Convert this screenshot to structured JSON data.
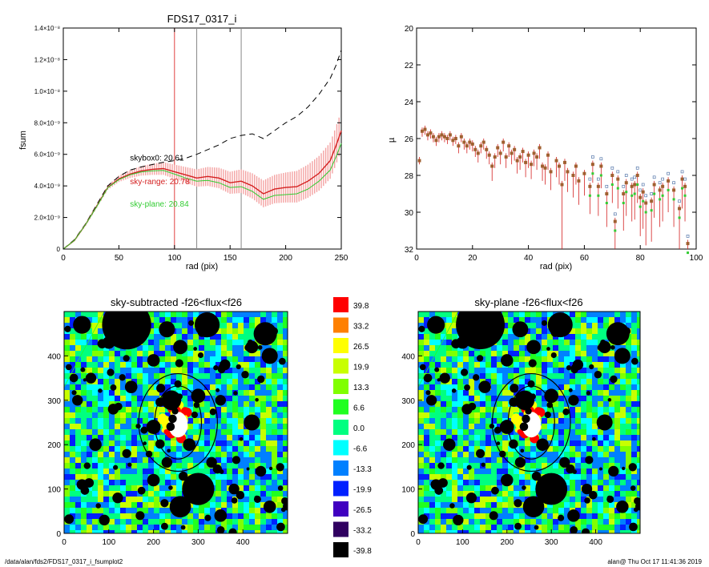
{
  "footer": {
    "path": "/data/alan/fds2/FDS17_0317_i_fsumplot2",
    "stamp": "alan@  Thu Oct 17 11:41:36 2019"
  },
  "colors": {
    "sky_range": "#d42020",
    "sky_range_band": "#f4a3a3",
    "sky_plane": "#33cc33",
    "skybox": "#000000",
    "vline_red": "#e04040",
    "vline_grey": "#888888"
  },
  "chart_data": [
    {
      "type": "line",
      "title": "FDS17_0317_i",
      "xlabel": "rad (pix)",
      "ylabel": "fsum",
      "xlim": [
        0,
        250
      ],
      "ylim": [
        0,
        1.4e-08
      ],
      "xticks": [
        0,
        50,
        100,
        150,
        200,
        250
      ],
      "yticks": [
        {
          "v": 0,
          "label": "0"
        },
        {
          "v": 2e-09,
          "label": "2.0×10⁻⁹"
        },
        {
          "v": 4e-09,
          "label": "4.0×10⁻⁹"
        },
        {
          "v": 6e-09,
          "label": "6.0×10⁻⁹"
        },
        {
          "v": 8e-09,
          "label": "8.0×10⁻⁹"
        },
        {
          "v": 1e-08,
          "label": "1.0×10⁻⁸"
        },
        {
          "v": 1.2e-08,
          "label": "1.2×10⁻⁸"
        },
        {
          "v": 1.4e-08,
          "label": "1.4×10⁻⁸"
        }
      ],
      "vlines": [
        {
          "x": 100,
          "color": "red"
        },
        {
          "x": 120,
          "color": "grey"
        },
        {
          "x": 160,
          "color": "grey"
        }
      ],
      "annotations": [
        {
          "text": "skybox0: 20.61",
          "x": 60,
          "y": 5.6e-09,
          "color": "black"
        },
        {
          "text": "sky-range: 20.78",
          "x": 60,
          "y": 4.1e-09,
          "color": "red"
        },
        {
          "text": "sky-plane: 20.84",
          "x": 60,
          "y": 2.7e-09,
          "color": "green"
        }
      ],
      "series": [
        {
          "style": "dashed",
          "color": "black",
          "x": [
            0,
            10,
            20,
            30,
            40,
            50,
            60,
            70,
            80,
            90,
            100,
            110,
            120,
            130,
            140,
            150,
            160,
            170,
            180,
            190,
            200,
            210,
            220,
            230,
            240,
            245,
            250
          ],
          "y": [
            0,
            6e-10,
            1.6e-09,
            2.8e-09,
            4e-09,
            4.6e-09,
            5e-09,
            5.2e-09,
            5.35e-09,
            5.5e-09,
            5.6e-09,
            5.75e-09,
            6e-09,
            6.3e-09,
            6.6e-09,
            7e-09,
            7.2e-09,
            7.3e-09,
            7e-09,
            7.5e-09,
            8e-09,
            8.4e-09,
            9e-09,
            9.8e-09,
            1.08e-08,
            1.16e-08,
            1.26e-08
          ]
        },
        {
          "style": "solid",
          "color": "red",
          "x": [
            0,
            10,
            20,
            30,
            40,
            50,
            60,
            70,
            80,
            90,
            100,
            110,
            120,
            130,
            140,
            150,
            160,
            170,
            180,
            190,
            200,
            210,
            220,
            230,
            240,
            245,
            250
          ],
          "y": [
            0,
            5.5e-10,
            1.55e-09,
            2.7e-09,
            3.9e-09,
            4.45e-09,
            4.75e-09,
            4.95e-09,
            5.05e-09,
            5.1e-09,
            4.9e-09,
            4.7e-09,
            4.5e-09,
            4.6e-09,
            4.5e-09,
            4.2e-09,
            4.3e-09,
            4e-09,
            3.5e-09,
            3.8e-09,
            3.9e-09,
            3.95e-09,
            4.3e-09,
            4.8e-09,
            5.6e-09,
            6.5e-09,
            7.5e-09
          ],
          "err": [
            0,
            5e-11,
            8e-11,
            1e-10,
            1.5e-10,
            2e-10,
            2.5e-10,
            3e-10,
            3.5e-10,
            4e-10,
            4.5e-10,
            5e-10,
            5.5e-10,
            6e-10,
            6.5e-10,
            7e-10,
            7.5e-10,
            8e-10,
            8.5e-10,
            9e-10,
            9.5e-10,
            1e-09,
            1.05e-09,
            1.1e-09,
            1.15e-09,
            1.2e-09,
            1.25e-09
          ]
        },
        {
          "style": "solid",
          "color": "green",
          "x": [
            0,
            10,
            20,
            30,
            40,
            50,
            60,
            70,
            80,
            90,
            100,
            110,
            120,
            130,
            140,
            150,
            160,
            170,
            180,
            190,
            200,
            210,
            220,
            230,
            240,
            245,
            250
          ],
          "y": [
            0,
            5.5e-10,
            1.55e-09,
            2.68e-09,
            3.88e-09,
            4.4e-09,
            4.7e-09,
            4.88e-09,
            4.95e-09,
            4.98e-09,
            4.75e-09,
            4.5e-09,
            4.3e-09,
            4.35e-09,
            4.2e-09,
            3.9e-09,
            3.95e-09,
            3.65e-09,
            3.15e-09,
            3.4e-09,
            3.45e-09,
            3.5e-09,
            3.8e-09,
            4.3e-09,
            5e-09,
            5.8e-09,
            6.7e-09
          ]
        }
      ]
    },
    {
      "type": "scatter",
      "title": "",
      "xlabel": "rad (pix)",
      "ylabel": "µ",
      "xlim": [
        0,
        100
      ],
      "ylim": [
        32,
        20
      ],
      "xticks": [
        0,
        20,
        40,
        60,
        80,
        100
      ],
      "yticks": [
        20,
        22,
        24,
        26,
        28,
        30,
        32
      ],
      "series": [
        {
          "color": "red",
          "x": [
            1,
            2,
            3,
            4,
            5,
            6,
            7,
            8,
            9,
            10,
            11,
            12,
            13,
            14,
            15,
            16,
            17,
            18,
            19,
            20,
            21,
            22,
            23,
            24,
            25,
            26,
            27,
            28,
            29,
            30,
            31,
            32,
            33,
            34,
            35,
            36,
            37,
            38,
            39,
            40,
            41,
            42,
            43,
            44,
            45,
            46,
            47,
            48,
            50,
            51,
            52,
            53,
            54,
            56,
            57,
            58,
            60,
            62,
            63,
            65,
            66,
            68,
            70,
            71,
            72,
            74,
            75,
            77,
            78,
            79,
            80,
            81,
            82,
            84,
            85,
            87,
            88,
            90,
            92,
            94,
            95,
            96,
            97
          ],
          "y": [
            27.2,
            25.6,
            25.5,
            25.8,
            25.7,
            25.9,
            26.1,
            25.9,
            25.8,
            25.9,
            26.0,
            25.8,
            26.1,
            26.0,
            26.4,
            25.9,
            26.2,
            26.4,
            26.2,
            26.3,
            26.6,
            26.8,
            26.4,
            26.2,
            26.6,
            26.9,
            27.5,
            27.0,
            26.5,
            26.8,
            26.2,
            27.0,
            26.4,
            26.8,
            26.6,
            27.2,
            27.0,
            26.7,
            27.3,
            26.9,
            27.4,
            26.8,
            27.0,
            26.5,
            27.5,
            27.6,
            26.9,
            27.8,
            27.2,
            27.5,
            28.5,
            27.3,
            27.8,
            28.0,
            27.5,
            28.3,
            27.9,
            28.6,
            27.4,
            28.6,
            27.5,
            29.0,
            28.0,
            30.5,
            28.2,
            29.0,
            28.4,
            28.6,
            28.5,
            28.0,
            29.2,
            28.9,
            29.5,
            29.4,
            28.5,
            28.8,
            28.6,
            28.3,
            28.8,
            29.8,
            28.2,
            28.6,
            31.7
          ],
          "err": [
            0.2,
            0.3,
            0.3,
            0.3,
            0.3,
            0.3,
            0.3,
            0.3,
            0.3,
            0.3,
            0.3,
            0.3,
            0.3,
            0.3,
            0.4,
            0.3,
            0.4,
            0.4,
            0.4,
            0.4,
            0.4,
            0.5,
            0.4,
            0.4,
            0.5,
            0.5,
            0.8,
            0.6,
            0.5,
            0.6,
            0.5,
            0.6,
            0.6,
            0.6,
            0.6,
            0.7,
            0.7,
            0.6,
            0.8,
            0.7,
            0.8,
            0.7,
            0.7,
            0.6,
            0.8,
            0.9,
            0.8,
            1.0,
            0.9,
            1.0,
            4.0,
            1.0,
            1.1,
            1.2,
            1.0,
            1.3,
            1.2,
            1.5,
            1.0,
            1.6,
            1.2,
            1.8,
            1.5,
            3.0,
            1.6,
            2.0,
            1.8,
            1.9,
            1.9,
            1.5,
            2.1,
            2.0,
            2.3,
            2.2,
            1.8,
            2.0,
            1.9,
            1.7,
            2.0,
            2.4,
            1.6,
            1.9,
            2.5
          ]
        }
      ]
    },
    {
      "type": "heatmap",
      "title": "sky-subtracted -f26<flux<f26",
      "xlim": [
        0,
        500
      ],
      "ylim": [
        0,
        500
      ],
      "xticks": [
        0,
        100,
        200,
        300,
        400
      ],
      "yticks": [
        0,
        100,
        200,
        300,
        400
      ]
    },
    {
      "type": "heatmap",
      "title": "sky-plane -f26<flux<f26",
      "xlim": [
        0,
        500
      ],
      "ylim": [
        0,
        500
      ],
      "xticks": [
        0,
        100,
        200,
        300,
        400
      ],
      "yticks": [
        0,
        100,
        200,
        300,
        400
      ]
    }
  ],
  "colorbar": {
    "levels": [
      {
        "label": "39.8",
        "color": "#ff0000"
      },
      {
        "label": "33.2",
        "color": "#ff8000"
      },
      {
        "label": "26.5",
        "color": "#ffff00"
      },
      {
        "label": "19.9",
        "color": "#c8ff00"
      },
      {
        "label": "13.3",
        "color": "#80ff00"
      },
      {
        "label": "6.6",
        "color": "#20ff20"
      },
      {
        "label": "0.0",
        "color": "#00ff80"
      },
      {
        "label": "-6.6",
        "color": "#00ffff"
      },
      {
        "label": "-13.3",
        "color": "#0080ff"
      },
      {
        "label": "-19.9",
        "color": "#0020ff"
      },
      {
        "label": "-26.5",
        "color": "#4000c0"
      },
      {
        "label": "-33.2",
        "color": "#300060"
      },
      {
        "label": "-39.8",
        "color": "#000000"
      }
    ]
  }
}
